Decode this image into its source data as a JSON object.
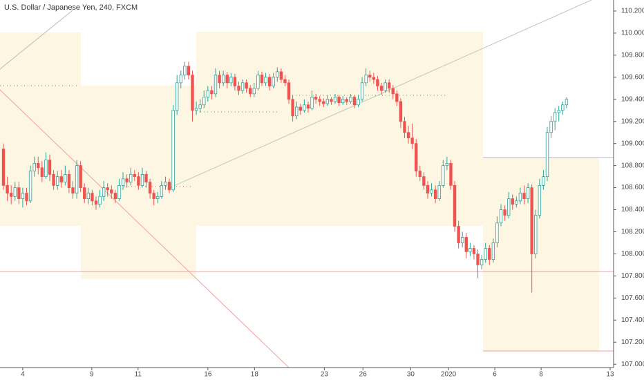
{
  "chart_data": {
    "type": "candlestick",
    "title": "U.S. Dollar / Japanese Yen, 240, FXCM",
    "up_color": "#26a69a",
    "down_color": "#ef5350",
    "ylim": [
      106.97,
      110.3
    ],
    "yticks": [
      {
        "value": 107.0,
        "label": "107.000"
      },
      {
        "value": 107.2,
        "label": "107.200"
      },
      {
        "value": 107.4,
        "label": "107.400"
      },
      {
        "value": 107.6,
        "label": "107.600"
      },
      {
        "value": 107.8,
        "label": "107.800"
      },
      {
        "value": 108.0,
        "label": "108.000"
      },
      {
        "value": 108.2,
        "label": "108.200"
      },
      {
        "value": 108.4,
        "label": "108.400"
      },
      {
        "value": 108.6,
        "label": "108.600"
      },
      {
        "value": 108.8,
        "label": "108.800"
      },
      {
        "value": 109.0,
        "label": "109.000"
      },
      {
        "value": 109.2,
        "label": "109.200"
      },
      {
        "value": 109.4,
        "label": "109.400"
      },
      {
        "value": 109.6,
        "label": "109.600"
      },
      {
        "value": 109.8,
        "label": "109.800"
      },
      {
        "value": 110.0,
        "label": "110.000"
      },
      {
        "value": 110.2,
        "label": "110.200"
      }
    ],
    "xlim": [
      -0.9,
      158.2
    ],
    "xticks": [
      {
        "value": 5.0,
        "label": "4"
      },
      {
        "value": 22.9,
        "label": "9"
      },
      {
        "value": 34.9,
        "label": "11"
      },
      {
        "value": 53.0,
        "label": "16"
      },
      {
        "value": 65.1,
        "label": "18"
      },
      {
        "value": 83.2,
        "label": "23"
      },
      {
        "value": 93.2,
        "label": "26"
      },
      {
        "value": 105.6,
        "label": "30"
      },
      {
        "value": 115.4,
        "label": "2020"
      },
      {
        "value": 127.4,
        "label": "6"
      },
      {
        "value": 139.4,
        "label": "8"
      },
      {
        "value": 157.3,
        "label": "13"
      }
    ],
    "ohlc": [
      [
        108.95,
        109.0,
        108.58,
        108.62
      ],
      [
        108.62,
        108.7,
        108.48,
        108.55
      ],
      [
        108.55,
        108.62,
        108.45,
        108.52
      ],
      [
        108.52,
        108.65,
        108.48,
        108.6
      ],
      [
        108.6,
        108.65,
        108.45,
        108.5
      ],
      [
        108.5,
        108.6,
        108.42,
        108.55
      ],
      [
        108.55,
        108.6,
        108.44,
        108.48
      ],
      [
        108.48,
        108.8,
        108.46,
        108.75
      ],
      [
        108.75,
        108.88,
        108.7,
        108.82
      ],
      [
        108.82,
        108.88,
        108.72,
        108.78
      ],
      [
        108.78,
        108.84,
        108.65,
        108.7
      ],
      [
        108.7,
        108.92,
        108.68,
        108.85
      ],
      [
        108.85,
        108.9,
        108.66,
        108.72
      ],
      [
        108.72,
        108.76,
        108.58,
        108.62
      ],
      [
        108.62,
        108.75,
        108.58,
        108.7
      ],
      [
        108.7,
        108.76,
        108.6,
        108.65
      ],
      [
        108.65,
        108.8,
        108.62,
        108.72
      ],
      [
        108.72,
        108.76,
        108.55,
        108.6
      ],
      [
        108.6,
        108.66,
        108.5,
        108.55
      ],
      [
        108.55,
        108.85,
        108.5,
        108.8
      ],
      [
        108.8,
        108.84,
        108.56,
        108.6
      ],
      [
        108.6,
        108.64,
        108.46,
        108.5
      ],
      [
        108.5,
        108.6,
        108.45,
        108.55
      ],
      [
        108.55,
        108.58,
        108.44,
        108.48
      ],
      [
        108.48,
        108.52,
        108.4,
        108.45
      ],
      [
        108.45,
        108.58,
        108.42,
        108.52
      ],
      [
        108.52,
        108.66,
        108.48,
        108.6
      ],
      [
        108.6,
        108.64,
        108.52,
        108.58
      ],
      [
        108.58,
        108.62,
        108.5,
        108.55
      ],
      [
        108.55,
        108.58,
        108.46,
        108.5
      ],
      [
        108.5,
        108.68,
        108.48,
        108.62
      ],
      [
        108.62,
        108.74,
        108.58,
        108.68
      ],
      [
        108.68,
        108.72,
        108.6,
        108.65
      ],
      [
        108.65,
        108.78,
        108.62,
        108.72
      ],
      [
        108.72,
        108.76,
        108.66,
        108.7
      ],
      [
        108.7,
        108.74,
        108.58,
        108.62
      ],
      [
        108.62,
        108.78,
        108.6,
        108.72
      ],
      [
        108.72,
        108.75,
        108.6,
        108.65
      ],
      [
        108.65,
        108.68,
        108.5,
        108.55
      ],
      [
        108.55,
        108.58,
        108.44,
        108.5
      ],
      [
        108.5,
        108.56,
        108.46,
        108.52
      ],
      [
        108.52,
        108.66,
        108.5,
        108.62
      ],
      [
        108.62,
        108.7,
        108.58,
        108.65
      ],
      [
        108.65,
        108.68,
        108.55,
        108.58
      ],
      [
        108.58,
        109.35,
        108.56,
        109.3
      ],
      [
        109.3,
        109.62,
        109.26,
        109.55
      ],
      [
        109.55,
        109.66,
        109.5,
        109.62
      ],
      [
        109.62,
        109.74,
        109.58,
        109.7
      ],
      [
        109.7,
        109.74,
        109.58,
        109.62
      ],
      [
        109.62,
        109.66,
        109.2,
        109.3
      ],
      [
        109.3,
        109.38,
        109.26,
        109.32
      ],
      [
        109.32,
        109.4,
        109.28,
        109.35
      ],
      [
        109.35,
        109.48,
        109.32,
        109.42
      ],
      [
        109.42,
        109.52,
        109.38,
        109.48
      ],
      [
        109.48,
        109.52,
        109.4,
        109.45
      ],
      [
        109.45,
        109.68,
        109.42,
        109.62
      ],
      [
        109.62,
        109.66,
        109.5,
        109.55
      ],
      [
        109.55,
        109.66,
        109.52,
        109.62
      ],
      [
        109.62,
        109.65,
        109.5,
        109.55
      ],
      [
        109.55,
        109.64,
        109.52,
        109.6
      ],
      [
        109.6,
        109.63,
        109.48,
        109.52
      ],
      [
        109.52,
        109.56,
        109.44,
        109.48
      ],
      [
        109.48,
        109.58,
        109.45,
        109.55
      ],
      [
        109.55,
        109.58,
        109.46,
        109.5
      ],
      [
        109.5,
        109.53,
        109.42,
        109.45
      ],
      [
        109.45,
        109.55,
        109.42,
        109.5
      ],
      [
        109.5,
        109.66,
        109.48,
        109.62
      ],
      [
        109.62,
        109.65,
        109.52,
        109.55
      ],
      [
        109.55,
        109.64,
        109.52,
        109.6
      ],
      [
        109.6,
        109.63,
        109.48,
        109.52
      ],
      [
        109.52,
        109.64,
        109.5,
        109.6
      ],
      [
        109.6,
        109.69,
        109.56,
        109.65
      ],
      [
        109.65,
        109.68,
        109.55,
        109.58
      ],
      [
        109.58,
        109.62,
        109.52,
        109.55
      ],
      [
        109.55,
        109.58,
        109.36,
        109.4
      ],
      [
        109.4,
        109.44,
        109.2,
        109.25
      ],
      [
        109.25,
        109.38,
        109.22,
        109.33
      ],
      [
        109.33,
        109.36,
        109.26,
        109.3
      ],
      [
        109.3,
        109.4,
        109.28,
        109.35
      ],
      [
        109.35,
        109.38,
        109.28,
        109.32
      ],
      [
        109.32,
        109.48,
        109.3,
        109.42
      ],
      [
        109.42,
        109.45,
        109.36,
        109.4
      ],
      [
        109.4,
        109.43,
        109.34,
        109.38
      ],
      [
        109.38,
        109.41,
        109.33,
        109.36
      ],
      [
        109.36,
        109.44,
        109.34,
        109.4
      ],
      [
        109.4,
        109.42,
        109.35,
        109.38
      ],
      [
        109.38,
        109.45,
        109.36,
        109.42
      ],
      [
        109.42,
        109.44,
        109.34,
        109.37
      ],
      [
        109.37,
        109.43,
        109.35,
        109.4
      ],
      [
        109.4,
        109.42,
        109.35,
        109.38
      ],
      [
        109.38,
        109.45,
        109.36,
        109.42
      ],
      [
        109.42,
        109.44,
        109.32,
        109.35
      ],
      [
        109.35,
        109.44,
        109.33,
        109.4
      ],
      [
        109.4,
        109.6,
        109.38,
        109.55
      ],
      [
        109.55,
        109.68,
        109.52,
        109.62
      ],
      [
        109.62,
        109.66,
        109.56,
        109.6
      ],
      [
        109.6,
        109.64,
        109.54,
        109.58
      ],
      [
        109.58,
        109.61,
        109.48,
        109.52
      ],
      [
        109.52,
        109.55,
        109.44,
        109.48
      ],
      [
        109.48,
        109.58,
        109.46,
        109.55
      ],
      [
        109.55,
        109.58,
        109.46,
        109.5
      ],
      [
        109.5,
        109.53,
        109.4,
        109.45
      ],
      [
        109.45,
        109.48,
        109.34,
        109.38
      ],
      [
        109.38,
        109.41,
        109.14,
        109.2
      ],
      [
        109.2,
        109.24,
        109.05,
        109.1
      ],
      [
        109.1,
        109.16,
        109.0,
        109.05
      ],
      [
        109.05,
        109.18,
        108.95,
        109.0
      ],
      [
        109.0,
        109.04,
        108.7,
        108.75
      ],
      [
        108.75,
        108.8,
        108.66,
        108.7
      ],
      [
        108.7,
        108.74,
        108.58,
        108.62
      ],
      [
        108.62,
        108.66,
        108.5,
        108.55
      ],
      [
        108.55,
        108.64,
        108.52,
        108.58
      ],
      [
        108.58,
        108.62,
        108.46,
        108.5
      ],
      [
        108.5,
        108.66,
        108.48,
        108.62
      ],
      [
        108.62,
        108.85,
        108.6,
        108.8
      ],
      [
        108.8,
        108.88,
        108.76,
        108.82
      ],
      [
        108.82,
        108.85,
        108.58,
        108.62
      ],
      [
        108.62,
        108.66,
        108.2,
        108.25
      ],
      [
        108.25,
        108.3,
        108.05,
        108.1
      ],
      [
        108.1,
        108.2,
        108.06,
        108.15
      ],
      [
        108.15,
        108.19,
        107.96,
        108.02
      ],
      [
        108.02,
        108.1,
        107.98,
        108.05
      ],
      [
        108.05,
        108.08,
        107.95,
        108.0
      ],
      [
        108.0,
        108.04,
        107.78,
        107.9
      ],
      [
        107.9,
        107.99,
        107.86,
        107.95
      ],
      [
        107.95,
        108.1,
        107.92,
        108.05
      ],
      [
        108.05,
        108.08,
        107.9,
        107.95
      ],
      [
        107.95,
        108.14,
        107.92,
        108.1
      ],
      [
        108.1,
        108.34,
        108.06,
        108.28
      ],
      [
        108.28,
        108.45,
        108.25,
        108.4
      ],
      [
        108.4,
        108.44,
        108.3,
        108.35
      ],
      [
        108.35,
        108.56,
        108.32,
        108.5
      ],
      [
        108.5,
        108.54,
        108.4,
        108.45
      ],
      [
        108.45,
        108.52,
        108.42,
        108.48
      ],
      [
        108.48,
        108.6,
        108.45,
        108.55
      ],
      [
        108.55,
        108.62,
        108.45,
        108.5
      ],
      [
        108.5,
        108.64,
        108.46,
        108.6
      ],
      [
        108.6,
        108.63,
        107.65,
        108.0
      ],
      [
        108.0,
        108.4,
        107.96,
        108.35
      ],
      [
        108.35,
        108.68,
        108.32,
        108.62
      ],
      [
        108.62,
        108.76,
        108.58,
        108.7
      ],
      [
        108.7,
        109.15,
        108.66,
        109.1
      ],
      [
        109.1,
        109.25,
        109.05,
        109.2
      ],
      [
        109.2,
        109.32,
        109.12,
        109.28
      ],
      [
        109.28,
        109.34,
        109.2,
        109.3
      ],
      [
        109.3,
        109.38,
        109.26,
        109.35
      ],
      [
        109.35,
        109.42,
        109.32,
        109.4
      ]
    ]
  }
}
